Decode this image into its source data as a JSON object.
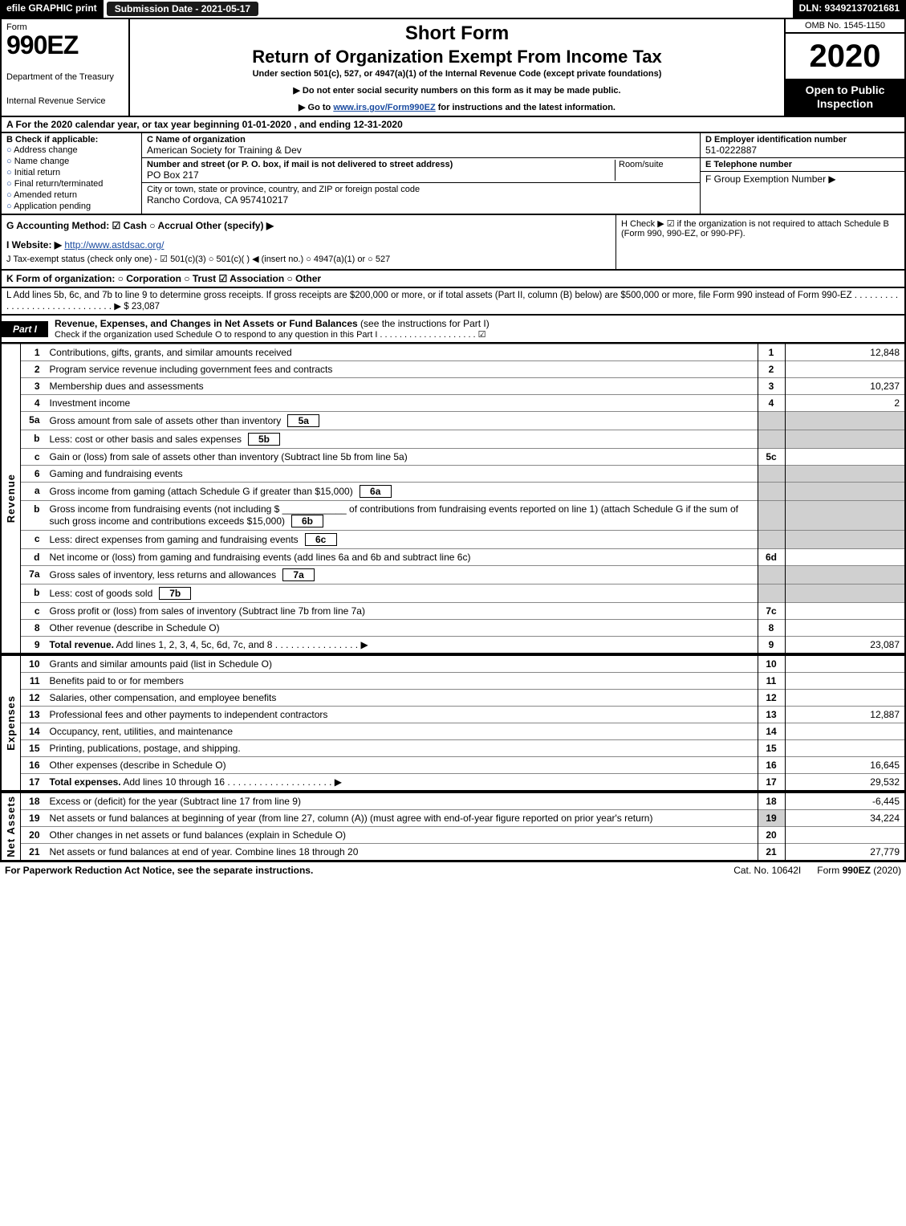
{
  "top": {
    "efile": "efile GRAPHIC print",
    "subdate": "Submission Date - 2021-05-17",
    "dln": "DLN: 93492137021681"
  },
  "hdr": {
    "form": "Form",
    "num": "990EZ",
    "dept": "Department of the Treasury",
    "irs": "Internal Revenue Service",
    "short": "Short Form",
    "return": "Return of Organization Exempt From Income Tax",
    "under": "Under section 501(c), 527, or 4947(a)(1) of the Internal Revenue Code (except private foundations)",
    "note1": "▶ Do not enter social security numbers on this form as it may be made public.",
    "note2": "▶ Go to ",
    "note2link": "www.irs.gov/Form990EZ",
    "note2b": " for instructions and the latest information.",
    "omb": "OMB No. 1545-1150",
    "year": "2020",
    "open": "Open to Public Inspection"
  },
  "A": "A  For the 2020 calendar year, or tax year beginning 01-01-2020 , and ending 12-31-2020",
  "B": {
    "title": "B  Check if applicable:",
    "opts": [
      "Address change",
      "Name change",
      "Initial return",
      "Final return/terminated",
      "Amended return",
      "Application pending"
    ]
  },
  "C": {
    "t1": "C Name of organization",
    "name": "American Society for Training & Dev",
    "t2": "Number and street (or P. O. box, if mail is not delivered to street address)",
    "addr": "PO Box 217",
    "room": "Room/suite",
    "t3": "City or town, state or province, country, and ZIP or foreign postal code",
    "city": "Rancho Cordova, CA  957410217"
  },
  "D": {
    "t": "D Employer identification number",
    "v": "51-0222887",
    "te": "E Telephone number",
    "tf": "F Group Exemption Number   ▶"
  },
  "G": "G Accounting Method:   ☑ Cash  ○ Accrual   Other (specify) ▶",
  "H": "H   Check ▶  ☑  if the organization is not required to attach Schedule B (Form 990, 990-EZ, or 990-PF).",
  "I": {
    "pre": "I Website: ▶",
    "link": "http://www.astdsac.org/"
  },
  "J": "J Tax-exempt status (check only one) -  ☑ 501(c)(3)  ○  501(c)(  ) ◀ (insert no.)  ○  4947(a)(1) or  ○  527",
  "K": "K Form of organization:   ○ Corporation   ○ Trust   ☑ Association   ○ Other",
  "L": {
    "text": "L Add lines 5b, 6c, and 7b to line 9 to determine gross receipts. If gross receipts are $200,000 or more, or if total assets (Part II, column (B) below) are $500,000 or more, file Form 990 instead of Form 990-EZ .  .  .  .  .  .  .  .  .  .  .  .  .  .  .  .  .  .  .  .  .  .  .  .  .  .  .  .  .  .  ▶ $ ",
    "amt": "23,087"
  },
  "part1": {
    "label": "Part I",
    "title": "Revenue, Expenses, and Changes in Net Assets or Fund Balances",
    "sub": "(see the instructions for Part I)",
    "check": "Check if the organization used Schedule O to respond to any question in this Part I .  .  .  .  .  .  .  .  .  .  .  .  .  .  .  .  .  .  .  .  ☑"
  },
  "sections": {
    "revenue": "Revenue",
    "expenses": "Expenses",
    "netassets": "Net Assets"
  },
  "rows": [
    {
      "n": "1",
      "d": "Contributions, gifts, grants, and similar amounts received",
      "nc": "1",
      "a": "12,848"
    },
    {
      "n": "2",
      "d": "Program service revenue including government fees and contracts",
      "nc": "2",
      "a": ""
    },
    {
      "n": "3",
      "d": "Membership dues and assessments",
      "nc": "3",
      "a": "10,237"
    },
    {
      "n": "4",
      "d": "Investment income",
      "nc": "4",
      "a": "2"
    },
    {
      "n": "5a",
      "d": "Gross amount from sale of assets other than inventory",
      "sb": "5a",
      "shade": true
    },
    {
      "n": "b",
      "d": "Less: cost or other basis and sales expenses",
      "sb": "5b",
      "shade": true
    },
    {
      "n": "c",
      "d": "Gain or (loss) from sale of assets other than inventory (Subtract line 5b from line 5a)",
      "nc": "5c",
      "a": ""
    },
    {
      "n": "6",
      "d": "Gaming and fundraising events",
      "shadeall": true
    },
    {
      "n": "a",
      "d": "Gross income from gaming (attach Schedule G if greater than $15,000)",
      "sb": "6a",
      "shade": true
    },
    {
      "n": "b",
      "d": "Gross income from fundraising events (not including $ ____________ of contributions from fundraising events reported on line 1) (attach Schedule G if the sum of such gross income and contributions exceeds $15,000)",
      "sb": "6b",
      "shade": true,
      "wrap": true
    },
    {
      "n": "c",
      "d": "Less: direct expenses from gaming and fundraising events",
      "sb": "6c",
      "shade": true
    },
    {
      "n": "d",
      "d": "Net income or (loss) from gaming and fundraising events (add lines 6a and 6b and subtract line 6c)",
      "nc": "6d",
      "a": ""
    },
    {
      "n": "7a",
      "d": "Gross sales of inventory, less returns and allowances",
      "sb": "7a",
      "shade": true
    },
    {
      "n": "b",
      "d": "Less: cost of goods sold",
      "sb": "7b",
      "shade": true
    },
    {
      "n": "c",
      "d": "Gross profit or (loss) from sales of inventory (Subtract line 7b from line 7a)",
      "nc": "7c",
      "a": ""
    },
    {
      "n": "8",
      "d": "Other revenue (describe in Schedule O)",
      "nc": "8",
      "a": ""
    },
    {
      "n": "9",
      "d": "Total revenue. Add lines 1, 2, 3, 4, 5c, 6d, 7c, and 8   .   .   .   .   .   .   .   .   .   .   .   .   .   .   .   .   ▶",
      "nc": "9",
      "a": "23,087",
      "bold": true
    }
  ],
  "rowsE": [
    {
      "n": "10",
      "d": "Grants and similar amounts paid (list in Schedule O)",
      "nc": "10",
      "a": ""
    },
    {
      "n": "11",
      "d": "Benefits paid to or for members",
      "nc": "11",
      "a": ""
    },
    {
      "n": "12",
      "d": "Salaries, other compensation, and employee benefits",
      "nc": "12",
      "a": ""
    },
    {
      "n": "13",
      "d": "Professional fees and other payments to independent contractors",
      "nc": "13",
      "a": "12,887"
    },
    {
      "n": "14",
      "d": "Occupancy, rent, utilities, and maintenance",
      "nc": "14",
      "a": ""
    },
    {
      "n": "15",
      "d": "Printing, publications, postage, and shipping.",
      "nc": "15",
      "a": ""
    },
    {
      "n": "16",
      "d": "Other expenses (describe in Schedule O)",
      "nc": "16",
      "a": "16,645"
    },
    {
      "n": "17",
      "d": "Total expenses. Add lines 10 through 16   .   .   .   .   .   .   .   .   .   .   .   .   .   .   .   .   .   .   .   .   ▶",
      "nc": "17",
      "a": "29,532",
      "bold": true
    }
  ],
  "rowsN": [
    {
      "n": "18",
      "d": "Excess or (deficit) for the year (Subtract line 17 from line 9)",
      "nc": "18",
      "a": "-6,445"
    },
    {
      "n": "19",
      "d": "Net assets or fund balances at beginning of year (from line 27, column (A)) (must agree with end-of-year figure reported on prior year's return)",
      "nc": "19",
      "a": "34,224",
      "wrap": true,
      "shadefirst": true
    },
    {
      "n": "20",
      "d": "Other changes in net assets or fund balances (explain in Schedule O)",
      "nc": "20",
      "a": ""
    },
    {
      "n": "21",
      "d": "Net assets or fund balances at end of year. Combine lines 18 through 20",
      "nc": "21",
      "a": "27,779"
    }
  ],
  "foot": {
    "l": "For Paperwork Reduction Act Notice, see the separate instructions.",
    "m": "Cat. No. 10642I",
    "r": "Form 990-EZ (2020)"
  },
  "colors": {
    "link": "#1a4ba0",
    "shade": "#d0d0d0"
  }
}
